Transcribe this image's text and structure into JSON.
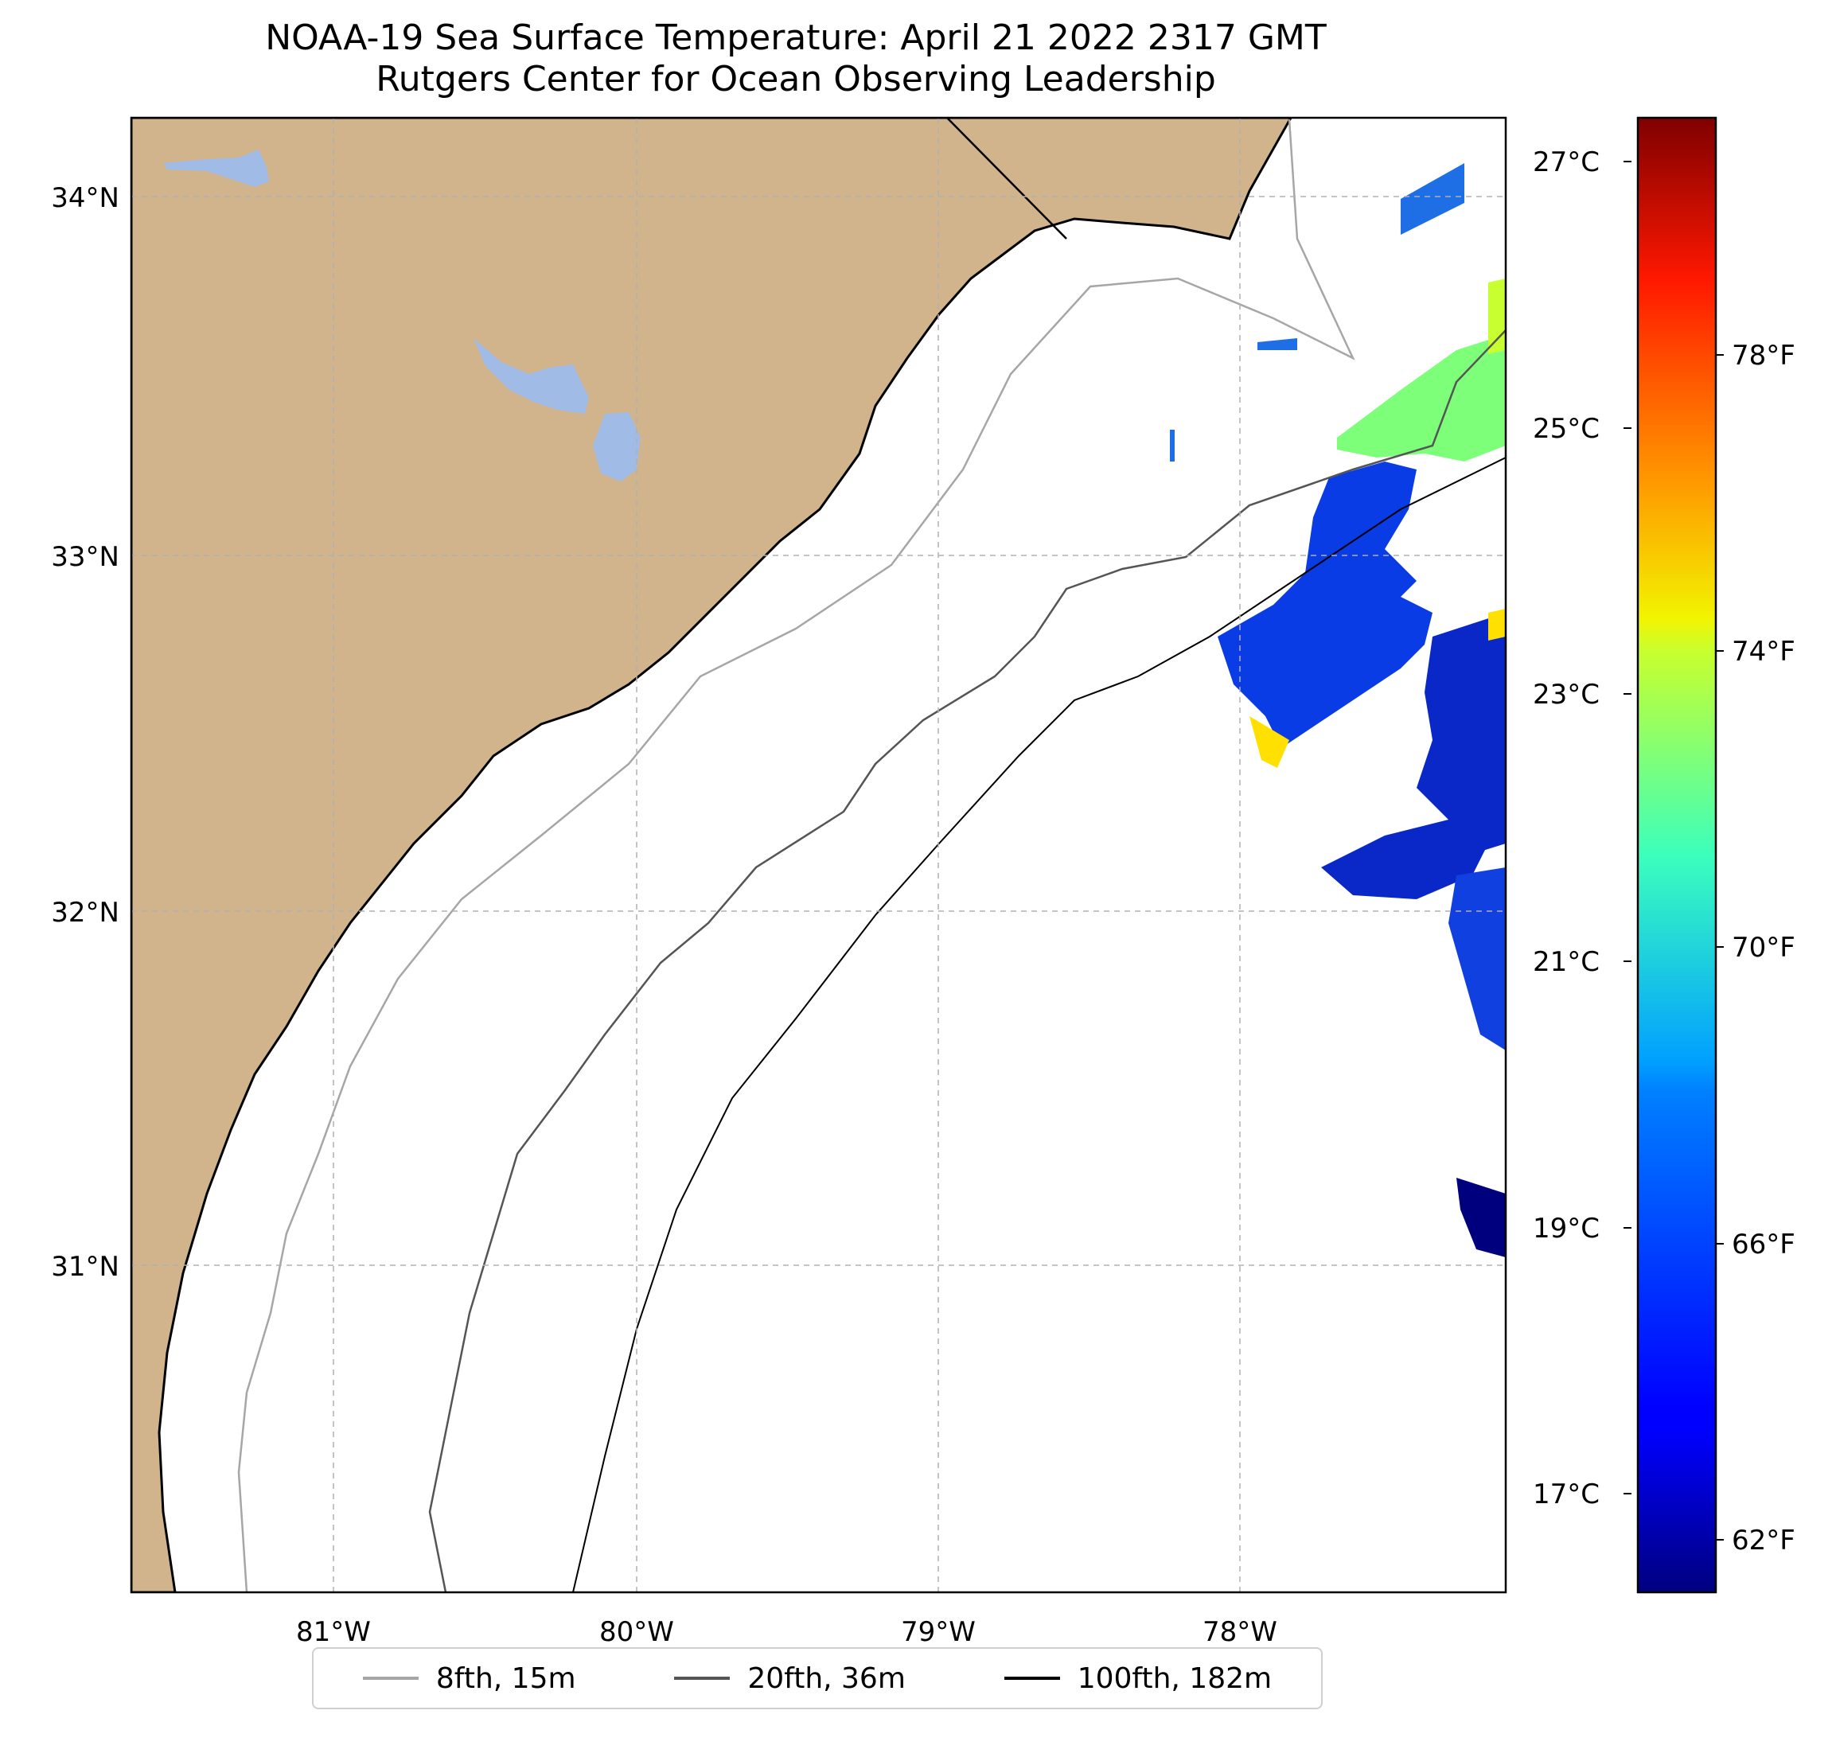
{
  "title": {
    "line1": "NOAA-19 Sea Surface Temperature: April 21 2022 2317 GMT",
    "line2": "Rutgers Center for Ocean Observing Leadership"
  },
  "map": {
    "lon_range": [
      -81.67,
      -77.13
    ],
    "lat_range": [
      30.13,
      34.22
    ],
    "lat_ticks": [
      {
        "value": 34,
        "label": "34°N"
      },
      {
        "value": 33,
        "label": "33°N"
      },
      {
        "value": 32,
        "label": "32°N"
      },
      {
        "value": 31,
        "label": "31°N"
      }
    ],
    "lon_ticks": [
      {
        "value": -81,
        "label": "81°W"
      },
      {
        "value": -80,
        "label": "80°W"
      },
      {
        "value": -79,
        "label": "79°W"
      },
      {
        "value": -78,
        "label": "78°W"
      }
    ],
    "land_color": "#d2b48c",
    "water_color": "#ffffff",
    "lake_color": "#a0bbe6"
  },
  "colorbar": {
    "colormap": "jet",
    "celsius_ticks": [
      {
        "value": 27,
        "label": "27°C"
      },
      {
        "value": 25,
        "label": "25°C"
      },
      {
        "value": 23,
        "label": "23°C"
      },
      {
        "value": 21,
        "label": "21°C"
      },
      {
        "value": 19,
        "label": "19°C"
      },
      {
        "value": 17,
        "label": "17°C"
      }
    ],
    "fahrenheit_ticks": [
      {
        "value": 78,
        "label": "78°F"
      },
      {
        "value": 74,
        "label": "74°F"
      },
      {
        "value": 70,
        "label": "70°F"
      },
      {
        "value": 66,
        "label": "66°F"
      },
      {
        "value": 62,
        "label": "62°F"
      }
    ],
    "range_c": [
      16.3,
      27.6
    ]
  },
  "legend": {
    "items": [
      {
        "label": "8fth, 15m",
        "color": "#a6a6a6"
      },
      {
        "label": "20fth, 36m",
        "color": "#555555"
      },
      {
        "label": "100fth, 182m",
        "color": "#000000"
      }
    ]
  }
}
